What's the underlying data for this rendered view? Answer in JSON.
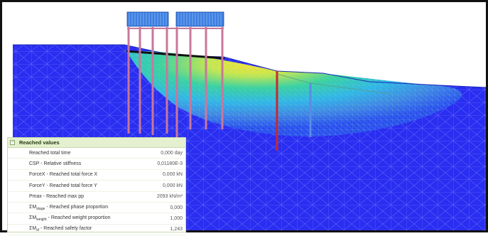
{
  "panel": {
    "title": "Reached values",
    "collapse_symbol": "−",
    "rows": [
      {
        "label": "Reached total time",
        "value": "0,000 day"
      },
      {
        "label": "CSP - Relative stiffness",
        "value": "0,01180E-3"
      },
      {
        "label": "ForceX - Reached total force X",
        "value": "0,000 kN"
      },
      {
        "label": "ForceY - Reached total force Y",
        "value": "0,000 kN"
      },
      {
        "label": "Pmax - Reached max pp",
        "value": "2093 kN/m²"
      },
      {
        "label_prefix": "ΣM",
        "label_sub": "stage",
        "label_suffix": " - Reached phase proportion",
        "value": "0,000"
      },
      {
        "label_prefix": "ΣM",
        "label_sub": "weight",
        "label_suffix": " - Reached weight proportion",
        "value": "1,000"
      },
      {
        "label_prefix": "ΣM",
        "label_sub": "sf",
        "label_suffix": " - Reached safety factor",
        "value": "1,243"
      }
    ]
  },
  "colors": {
    "soil_base": "#2a2ef0",
    "ground_surface": "#2c4bd6",
    "shear_band_high": "#ffe030",
    "shear_band_mid": "#38d2a0",
    "piles": "#c8789a",
    "wall_red": "#c8282e",
    "wall_blue": "#5a8ce6",
    "load_blocks": "#3c7ee0"
  }
}
